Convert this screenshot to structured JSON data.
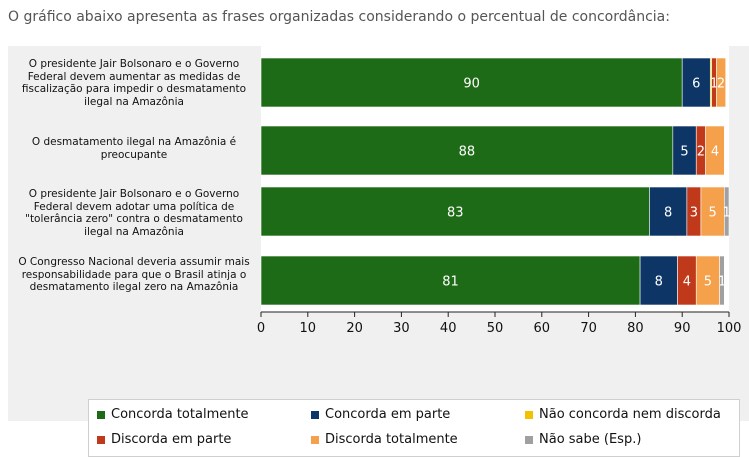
{
  "intro_text": "O gráfico abaixo apresenta as frases organizadas considerando o percentual de concordância:",
  "chart_data": {
    "type": "bar",
    "orientation": "horizontal",
    "stacked": true,
    "categories": [
      "O presidente Jair Bolsonaro e o Governo Federal devem aumentar as medidas de fiscalização para impedir o desmatamento ilegal na Amazônia",
      "O desmatamento ilegal na Amazônia é preocupante",
      "O presidente Jair Bolsonaro e o Governo Federal devem adotar uma política de \"tolerância zero\" contra o desmatamento ilegal na Amazônia",
      "O Congresso Nacional deveria assumir mais responsabilidade para que o Brasil atinja o desmatamento ilegal zero na Amazônia"
    ],
    "series": [
      {
        "name": "Concorda totalmente",
        "color": "#1e6b17",
        "values": [
          90,
          88,
          83,
          81
        ],
        "labels": [
          "90",
          "88",
          "83",
          "81"
        ]
      },
      {
        "name": "Concorda em parte",
        "color": "#0d3566",
        "values": [
          6,
          5,
          8,
          8
        ],
        "labels": [
          "6",
          "5",
          "8",
          "8"
        ]
      },
      {
        "name": "Não concorda nem discorda",
        "color": "#f2c200",
        "values": [
          0.3,
          0,
          0,
          0
        ],
        "labels": [
          "",
          "",
          "",
          ""
        ]
      },
      {
        "name": "Discorda em parte",
        "color": "#c0391b",
        "values": [
          1,
          2,
          3,
          4
        ],
        "labels": [
          "1",
          "2",
          "3",
          "4"
        ]
      },
      {
        "name": "Discorda totalmente",
        "color": "#f5a04a",
        "values": [
          2,
          4,
          5,
          5
        ],
        "labels": [
          "2",
          "4",
          "5",
          "5"
        ]
      },
      {
        "name": "Não sabe (Esp.)",
        "color": "#a0a0a0",
        "values": [
          0,
          0,
          1,
          1
        ],
        "labels": [
          "",
          "",
          "1",
          "1"
        ]
      }
    ],
    "xlim": [
      0,
      100
    ],
    "xticks": [
      0,
      10,
      20,
      30,
      40,
      50,
      60,
      70,
      80,
      90,
      100
    ],
    "legend_position": "bottom"
  }
}
